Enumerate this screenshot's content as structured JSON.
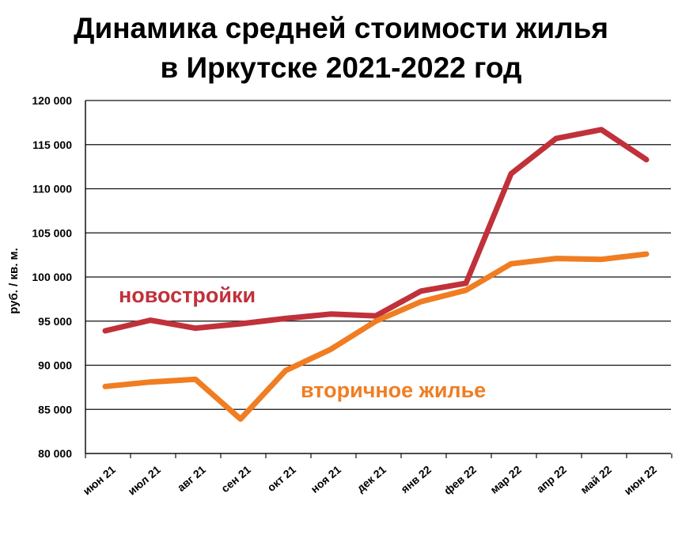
{
  "chart_data": {
    "type": "line",
    "title_line1": "Динамика  средней стоимости жилья",
    "title_line2": "в Иркутске 2021-2022 год",
    "ylabel": "руб. / кв. м.",
    "ylim": [
      80000,
      120000
    ],
    "yticks": [
      80000,
      85000,
      90000,
      95000,
      100000,
      105000,
      110000,
      115000,
      120000
    ],
    "ytick_labels": [
      "80 000",
      "85 000",
      "90 000",
      "95 000",
      "100 000",
      "105 000",
      "110 000",
      "115 000",
      "120 000"
    ],
    "categories": [
      "июн 21",
      "июл 21",
      "авг 21",
      "сен 21",
      "окт 21",
      "ноя 21",
      "дек 21",
      "янв 22",
      "фев 22",
      "мар 22",
      "апр 22",
      "май 22",
      "июн 22"
    ],
    "grid": "horizontal",
    "series": [
      {
        "name": "новостройки",
        "color": "#c0313a",
        "values": [
          93900,
          95100,
          94200,
          94700,
          95300,
          95800,
          95600,
          98400,
          99300,
          111700,
          115700,
          116700,
          113300
        ]
      },
      {
        "name": "вторичное жилье",
        "color": "#f07d22",
        "values": [
          87600,
          88100,
          88400,
          83900,
          89400,
          91800,
          95000,
          97200,
          98500,
          101500,
          102100,
          102000,
          102600
        ]
      }
    ]
  }
}
